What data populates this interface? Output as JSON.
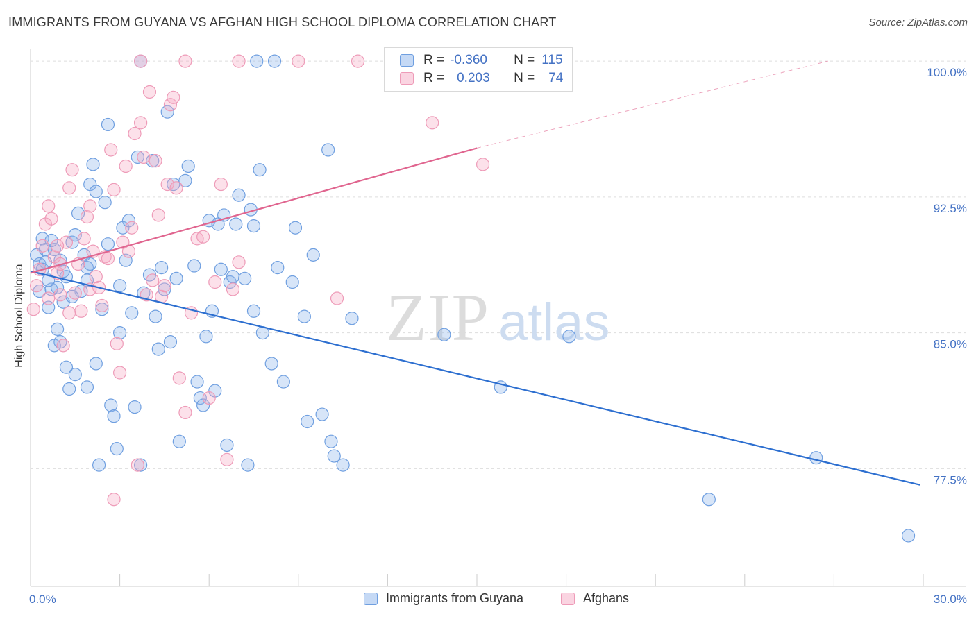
{
  "header": {
    "title": "IMMIGRANTS FROM GUYANA VS AFGHAN HIGH SCHOOL DIPLOMA CORRELATION CHART",
    "source": "Source: ZipAtlas.com"
  },
  "watermark": {
    "zip": "ZIP",
    "atlas": "atlas"
  },
  "legend": {
    "rows": [
      {
        "r_label": "R =",
        "r_value": "-0.360",
        "n_label": "N =",
        "n_value": "115"
      },
      {
        "r_label": "R =",
        "r_value": "0.203",
        "n_label": "N =",
        "n_value": "74"
      }
    ]
  },
  "colors": {
    "guyana_fill": "rgba(140,180,235,0.35)",
    "guyana_stroke": "#6f9fe0",
    "guyana_line": "#2d6fd0",
    "afghan_fill": "rgba(245,170,195,0.35)",
    "afghan_stroke": "#ee9bb8",
    "afghan_line": "#e0658f",
    "tick_text": "#4472c4",
    "grid": "#dddddd"
  },
  "chart_data": {
    "type": "scatter",
    "title": "IMMIGRANTS FROM GUYANA VS AFGHAN HIGH SCHOOL DIPLOMA CORRELATION CHART",
    "xlabel": "",
    "ylabel": "High School Diploma",
    "xlim": [
      0,
      30
    ],
    "ylim": [
      71.0,
      101.0
    ],
    "x_tick_labels": [
      {
        "value": 0,
        "label": "0.0%"
      },
      {
        "value": 30,
        "label": "30.0%"
      }
    ],
    "y_tick_labels": [
      {
        "value": 100.0,
        "label": "100.0%"
      },
      {
        "value": 92.5,
        "label": "92.5%"
      },
      {
        "value": 85.0,
        "label": "85.0%"
      },
      {
        "value": 77.5,
        "label": "77.5%"
      }
    ],
    "grid": true,
    "legend_position": "top-center",
    "series": [
      {
        "name": "Immigrants from Guyana",
        "r": -0.36,
        "n": 115,
        "trend": {
          "x": [
            0.0,
            29.9
          ],
          "y": [
            88.4,
            76.6
          ]
        },
        "points": [
          [
            0.2,
            89.3
          ],
          [
            0.3,
            88.8
          ],
          [
            0.3,
            87.3
          ],
          [
            0.4,
            90.2
          ],
          [
            0.5,
            88.9
          ],
          [
            0.5,
            89.6
          ],
          [
            0.6,
            86.4
          ],
          [
            0.7,
            87.4
          ],
          [
            0.8,
            84.3
          ],
          [
            0.9,
            85.2
          ],
          [
            0.9,
            87.5
          ],
          [
            1.0,
            84.5
          ],
          [
            1.1,
            86.7
          ],
          [
            1.2,
            83.1
          ],
          [
            1.3,
            81.9
          ],
          [
            1.4,
            90.0
          ],
          [
            1.5,
            82.7
          ],
          [
            1.5,
            90.4
          ],
          [
            1.6,
            91.6
          ],
          [
            1.8,
            89.3
          ],
          [
            1.9,
            88.6
          ],
          [
            1.9,
            82.0
          ],
          [
            2.0,
            93.2
          ],
          [
            2.1,
            94.3
          ],
          [
            2.2,
            92.8
          ],
          [
            2.2,
            83.3
          ],
          [
            2.3,
            77.7
          ],
          [
            2.4,
            86.3
          ],
          [
            2.5,
            92.2
          ],
          [
            2.6,
            96.5
          ],
          [
            2.7,
            81.0
          ],
          [
            2.8,
            80.4
          ],
          [
            2.9,
            78.6
          ],
          [
            3.0,
            85.0
          ],
          [
            3.1,
            90.8
          ],
          [
            3.2,
            89.0
          ],
          [
            3.3,
            91.2
          ],
          [
            3.4,
            86.1
          ],
          [
            3.5,
            80.9
          ],
          [
            3.6,
            94.7
          ],
          [
            3.7,
            77.7
          ],
          [
            3.8,
            87.2
          ],
          [
            4.0,
            88.2
          ],
          [
            4.1,
            94.5
          ],
          [
            4.2,
            85.9
          ],
          [
            4.3,
            84.1
          ],
          [
            4.4,
            88.6
          ],
          [
            4.5,
            87.4
          ],
          [
            4.6,
            97.2
          ],
          [
            4.7,
            84.5
          ],
          [
            4.8,
            93.2
          ],
          [
            4.9,
            88.0
          ],
          [
            5.0,
            79.0
          ],
          [
            5.2,
            93.4
          ],
          [
            5.3,
            94.2
          ],
          [
            5.5,
            88.7
          ],
          [
            5.6,
            82.3
          ],
          [
            5.7,
            81.4
          ],
          [
            5.8,
            81.0
          ],
          [
            5.9,
            84.8
          ],
          [
            6.0,
            91.2
          ],
          [
            6.1,
            86.2
          ],
          [
            6.2,
            81.8
          ],
          [
            6.3,
            91.0
          ],
          [
            6.4,
            88.5
          ],
          [
            6.5,
            91.5
          ],
          [
            6.6,
            78.8
          ],
          [
            6.7,
            87.8
          ],
          [
            6.8,
            88.1
          ],
          [
            6.9,
            91.0
          ],
          [
            7.0,
            92.6
          ],
          [
            7.2,
            88.0
          ],
          [
            7.3,
            77.7
          ],
          [
            7.4,
            91.8
          ],
          [
            7.5,
            90.9
          ],
          [
            7.5,
            86.2
          ],
          [
            7.6,
            100.0
          ],
          [
            7.7,
            94.0
          ],
          [
            7.8,
            85.0
          ],
          [
            8.1,
            83.3
          ],
          [
            8.3,
            88.6
          ],
          [
            8.5,
            82.3
          ],
          [
            8.8,
            87.8
          ],
          [
            8.9,
            90.8
          ],
          [
            9.2,
            85.9
          ],
          [
            9.3,
            80.1
          ],
          [
            9.5,
            89.3
          ],
          [
            9.8,
            80.5
          ],
          [
            8.2,
            100.0
          ],
          [
            3.7,
            100.0
          ],
          [
            10.0,
            95.1
          ],
          [
            10.1,
            79.0
          ],
          [
            10.2,
            78.2
          ],
          [
            10.5,
            77.7
          ],
          [
            10.8,
            85.8
          ],
          [
            1.0,
            89.0
          ],
          [
            1.2,
            88.1
          ],
          [
            0.6,
            87.9
          ],
          [
            0.8,
            89.6
          ],
          [
            2.0,
            88.8
          ],
          [
            1.7,
            87.3
          ],
          [
            2.6,
            89.9
          ],
          [
            3.0,
            87.6
          ],
          [
            0.4,
            88.5
          ],
          [
            1.1,
            88.4
          ],
          [
            1.4,
            87.0
          ],
          [
            1.9,
            87.9
          ],
          [
            0.7,
            90.1
          ],
          [
            13.9,
            84.9
          ],
          [
            15.8,
            82.0
          ],
          [
            18.1,
            84.8
          ],
          [
            22.8,
            75.8
          ],
          [
            26.4,
            78.1
          ],
          [
            29.5,
            73.8
          ]
        ]
      },
      {
        "name": "Afghans",
        "r": 0.203,
        "n": 74,
        "trend": {
          "x": [
            0.0,
            15.0
          ],
          "y": [
            88.3,
            95.2
          ]
        },
        "trend_dashed": {
          "x": [
            15.0,
            26.8
          ],
          "y": [
            95.2,
            100.0
          ]
        },
        "points": [
          [
            0.1,
            86.3
          ],
          [
            0.2,
            87.6
          ],
          [
            0.3,
            88.5
          ],
          [
            0.4,
            89.8
          ],
          [
            0.5,
            91.0
          ],
          [
            0.6,
            92.0
          ],
          [
            0.7,
            91.3
          ],
          [
            0.8,
            89.2
          ],
          [
            0.9,
            88.3
          ],
          [
            1.0,
            87.1
          ],
          [
            1.1,
            84.3
          ],
          [
            1.2,
            90.0
          ],
          [
            1.3,
            93.0
          ],
          [
            1.4,
            94.0
          ],
          [
            1.5,
            87.2
          ],
          [
            1.6,
            88.8
          ],
          [
            1.7,
            86.2
          ],
          [
            1.8,
            90.2
          ],
          [
            1.9,
            91.4
          ],
          [
            2.0,
            92.0
          ],
          [
            2.1,
            89.5
          ],
          [
            2.2,
            88.1
          ],
          [
            2.3,
            87.5
          ],
          [
            2.4,
            86.5
          ],
          [
            2.5,
            89.2
          ],
          [
            2.6,
            89.1
          ],
          [
            2.7,
            95.1
          ],
          [
            2.8,
            92.9
          ],
          [
            2.9,
            84.4
          ],
          [
            3.0,
            82.8
          ],
          [
            3.1,
            90.0
          ],
          [
            3.2,
            94.2
          ],
          [
            3.3,
            89.5
          ],
          [
            3.4,
            90.8
          ],
          [
            3.5,
            96.0
          ],
          [
            3.6,
            77.7
          ],
          [
            3.7,
            96.6
          ],
          [
            3.8,
            94.7
          ],
          [
            3.9,
            87.1
          ],
          [
            4.0,
            98.3
          ],
          [
            4.1,
            87.9
          ],
          [
            4.2,
            94.5
          ],
          [
            4.3,
            91.5
          ],
          [
            4.4,
            87.0
          ],
          [
            4.5,
            87.6
          ],
          [
            4.6,
            93.2
          ],
          [
            4.7,
            97.6
          ],
          [
            4.8,
            98.0
          ],
          [
            4.9,
            93.0
          ],
          [
            5.0,
            82.5
          ],
          [
            5.2,
            80.6
          ],
          [
            5.4,
            86.1
          ],
          [
            5.6,
            90.2
          ],
          [
            5.8,
            90.3
          ],
          [
            6.0,
            81.4
          ],
          [
            6.2,
            87.8
          ],
          [
            6.4,
            93.2
          ],
          [
            6.6,
            78.0
          ],
          [
            6.8,
            87.4
          ],
          [
            7.0,
            88.9
          ],
          [
            2.8,
            75.8
          ],
          [
            3.7,
            100.0
          ],
          [
            5.2,
            100.0
          ],
          [
            7.0,
            100.0
          ],
          [
            9.0,
            100.0
          ],
          [
            11.0,
            100.0
          ],
          [
            10.3,
            86.9
          ],
          [
            13.5,
            96.6
          ],
          [
            15.2,
            94.3
          ],
          [
            0.6,
            86.9
          ],
          [
            1.0,
            88.8
          ],
          [
            2.0,
            87.4
          ],
          [
            1.3,
            86.1
          ],
          [
            0.9,
            89.8
          ]
        ]
      }
    ]
  },
  "bottom_legend": {
    "guyana_label": "Immigrants from Guyana",
    "afghan_label": "Afghans"
  }
}
